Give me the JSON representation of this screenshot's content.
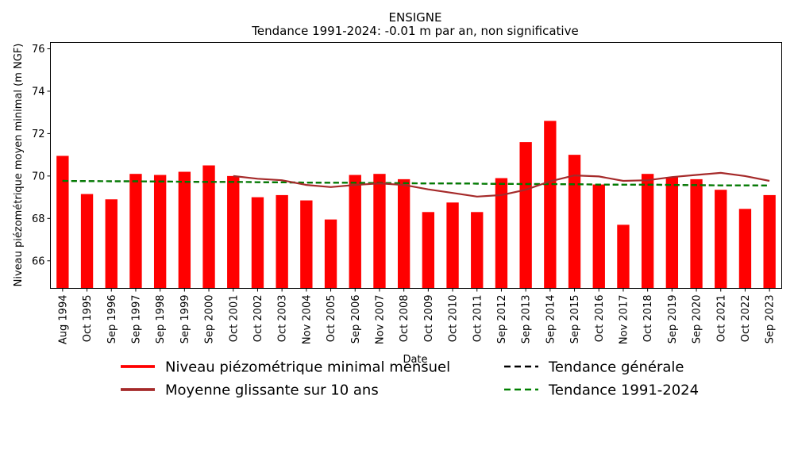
{
  "chart_data": {
    "type": "bar",
    "title": "ENSIGNE",
    "subtitle": "Tendance 1991-2024: -0.01 m par an, non significative",
    "xlabel": "Date",
    "ylabel": "Niveau piézométrique moyen minimal (m NGF)",
    "ylim": [
      64.7,
      76.3
    ],
    "yticks": [
      66,
      68,
      70,
      72,
      74,
      76
    ],
    "grid": false,
    "legend_placement": "bottom",
    "categories": [
      "Aug 1994",
      "Oct 1995",
      "Sep 1996",
      "Sep 1997",
      "Sep 1998",
      "Sep 1999",
      "Sep 2000",
      "Oct 2001",
      "Oct 2002",
      "Oct 2003",
      "Nov 2004",
      "Oct 2005",
      "Sep 2006",
      "Nov 2007",
      "Oct 2008",
      "Oct 2009",
      "Oct 2010",
      "Oct 2011",
      "Sep 2012",
      "Sep 2013",
      "Sep 2014",
      "Sep 2015",
      "Oct 2016",
      "Nov 2017",
      "Oct 2018",
      "Sep 2019",
      "Sep 2020",
      "Oct 2021",
      "Oct 2022",
      "Sep 2023"
    ],
    "series": [
      {
        "name": "Niveau piézométrique minimal mensuel",
        "kind": "bar",
        "color": "#ff0000",
        "values": [
          70.95,
          69.15,
          68.9,
          70.1,
          70.05,
          70.2,
          70.5,
          70.0,
          69.0,
          69.1,
          68.85,
          67.95,
          70.05,
          70.1,
          69.85,
          68.3,
          68.75,
          68.3,
          69.9,
          71.6,
          72.6,
          71.0,
          69.6,
          67.7,
          70.1,
          69.95,
          69.85,
          69.35,
          68.45,
          69.1
        ]
      },
      {
        "name": "Moyenne glissante sur 10 ans",
        "kind": "line",
        "color": "#a52a2a",
        "values": [
          null,
          null,
          null,
          null,
          null,
          null,
          null,
          70.0,
          69.87,
          69.8,
          69.58,
          69.48,
          69.58,
          69.65,
          69.58,
          69.37,
          69.2,
          69.03,
          69.1,
          69.35,
          69.75,
          70.03,
          69.98,
          69.77,
          69.8,
          69.95,
          70.05,
          70.15,
          70.0,
          69.77
        ]
      },
      {
        "name": "Tendance générale",
        "kind": "line",
        "style": "dashed",
        "color": "#000000",
        "values": [
          69.77,
          69.76,
          69.75,
          69.75,
          69.74,
          69.73,
          69.72,
          69.72,
          69.71,
          69.7,
          69.69,
          69.68,
          69.68,
          69.67,
          69.66,
          69.65,
          69.65,
          69.64,
          69.63,
          69.62,
          69.62,
          69.61,
          69.6,
          69.59,
          69.59,
          69.58,
          69.57,
          69.56,
          69.56,
          69.55
        ]
      },
      {
        "name": "Tendance 1991-2024",
        "kind": "line",
        "style": "dashed",
        "color": "#008000",
        "values": [
          69.77,
          69.76,
          69.75,
          69.75,
          69.74,
          69.73,
          69.72,
          69.72,
          69.71,
          69.7,
          69.69,
          69.68,
          69.68,
          69.67,
          69.66,
          69.65,
          69.65,
          69.64,
          69.63,
          69.62,
          69.62,
          69.61,
          69.6,
          69.59,
          69.59,
          69.58,
          69.57,
          69.56,
          69.56,
          69.55
        ]
      }
    ]
  }
}
